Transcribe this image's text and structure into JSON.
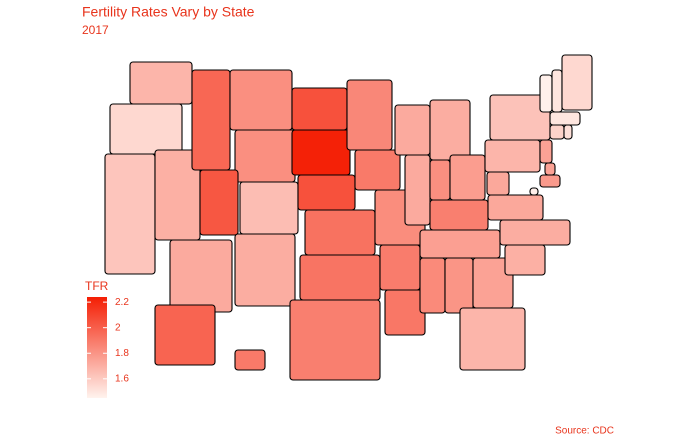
{
  "chart_data": {
    "type": "choropleth",
    "title": "Fertility Rates Vary by State",
    "subtitle": "2017",
    "legend_title": "TFR",
    "caption": "Source: CDC",
    "text_color": "#e8341c",
    "color_low": "#fff3ee",
    "color_high": "#f41e04",
    "colorlim": [
      1.45,
      2.24
    ],
    "ticks": [
      1.6,
      1.8,
      2.0,
      2.2
    ],
    "values": {
      "WA": 1.68,
      "OR": 1.55,
      "CA": 1.62,
      "NV": 1.7,
      "ID": 1.97,
      "MT": 1.82,
      "WY": 1.82,
      "UT": 2.03,
      "CO": 1.65,
      "AZ": 1.72,
      "NM": 1.71,
      "ND": 2.05,
      "SD": 2.23,
      "NE": 2.05,
      "KS": 1.93,
      "OK": 1.92,
      "TX": 1.88,
      "MN": 1.85,
      "IA": 1.9,
      "MO": 1.83,
      "AR": 1.89,
      "LA": 1.91,
      "WI": 1.72,
      "IL": 1.72,
      "MS": 1.84,
      "AL": 1.8,
      "TN": 1.76,
      "KY": 1.88,
      "MI": 1.71,
      "IN": 1.82,
      "OH": 1.77,
      "GA": 1.75,
      "FL": 1.68,
      "SC": 1.7,
      "NC": 1.71,
      "VA": 1.73,
      "WV": 1.73,
      "PA": 1.68,
      "NY": 1.63,
      "MD": 1.78,
      "DE": 1.75,
      "NJ": 1.75,
      "DC": 1.46,
      "CT": 1.57,
      "RI": 1.52,
      "MA": 1.5,
      "VT": 1.46,
      "NH": 1.5,
      "ME": 1.55,
      "AK": 1.98,
      "HI": 1.9
    }
  }
}
